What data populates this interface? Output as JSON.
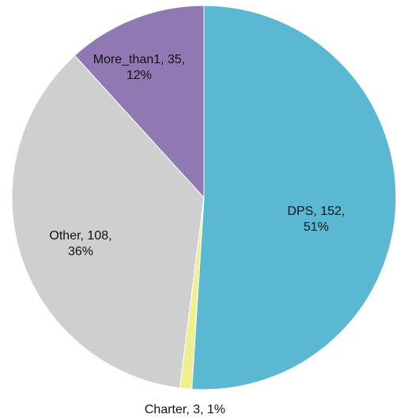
{
  "chart_data": {
    "type": "pie",
    "title": "",
    "start_angle_deg": 0,
    "direction": "clockwise",
    "slices": [
      {
        "label": "DPS",
        "value": 152,
        "percent": "51%",
        "color": "#5ab8d2"
      },
      {
        "label": "Charter",
        "value": 3,
        "percent": "1%",
        "color": "#f0ef8f"
      },
      {
        "label": "Other",
        "value": 108,
        "percent": "36%",
        "color": "#cfcfcf"
      },
      {
        "label": "More_than1",
        "value": 35,
        "percent": "12%",
        "color": "#9079b2"
      }
    ],
    "label_placement": {
      "DPS": "inside",
      "Charter": "outside-bottom",
      "Other": "inside",
      "More_than1": "inside"
    }
  }
}
